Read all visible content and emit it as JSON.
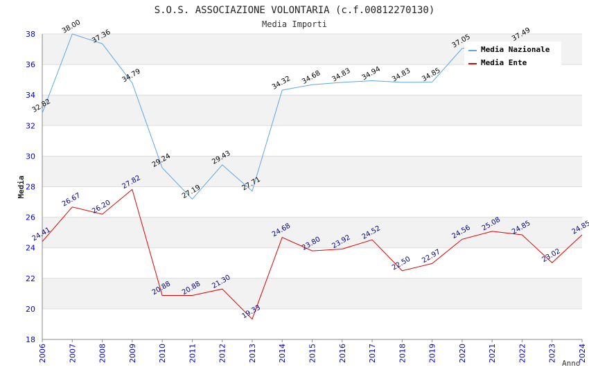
{
  "chart_data": {
    "type": "line",
    "title": "S.O.S. ASSOCIAZIONE VOLONTARIA (c.f.00812270130)",
    "subtitle": "Media Importi",
    "xlabel": "Anno",
    "ylabel": "Media",
    "ylim": [
      18,
      38
    ],
    "yticks": [
      18,
      20,
      22,
      24,
      26,
      28,
      30,
      32,
      34,
      36,
      38
    ],
    "categories": [
      "2006",
      "2007",
      "2008",
      "2009",
      "2010",
      "2011",
      "2012",
      "2013",
      "2014",
      "2015",
      "2016",
      "2017",
      "2018",
      "2019",
      "2020",
      "2021",
      "2022",
      "2023",
      "2024"
    ],
    "legend_position": "top-right",
    "grid": true,
    "series": [
      {
        "name": "Media Nazionale",
        "color": "#5ea6e6",
        "values": [
          32.82,
          38.0,
          37.36,
          34.79,
          29.24,
          27.19,
          29.43,
          27.71,
          34.32,
          34.68,
          34.83,
          34.94,
          34.83,
          34.85,
          37.05,
          null,
          37.49,
          null,
          null
        ],
        "labels": [
          "32.82",
          "38.00",
          "37.36",
          "34.79",
          "29.24",
          "27.19",
          "29.43",
          "27.71",
          "34.32",
          "34.68",
          "34.83",
          "34.94",
          "34.83",
          "34.85",
          "37.05",
          "",
          "37.49",
          "",
          ""
        ]
      },
      {
        "name": "Media Ente",
        "color": "#dd0000",
        "values": [
          24.41,
          26.67,
          26.2,
          27.82,
          20.88,
          20.88,
          21.3,
          19.33,
          24.68,
          23.8,
          23.92,
          24.52,
          22.5,
          22.97,
          24.56,
          25.08,
          24.85,
          23.02,
          24.85
        ],
        "labels": [
          "24.41",
          "26.67",
          "26.20",
          "27.82",
          "20.88",
          "20.88",
          "21.30",
          "19.33",
          "24.68",
          "23.80",
          "23.92",
          "24.52",
          "22.50",
          "22.97",
          "24.56",
          "25.08",
          "24.85",
          "23.02",
          "24.85"
        ]
      }
    ]
  }
}
